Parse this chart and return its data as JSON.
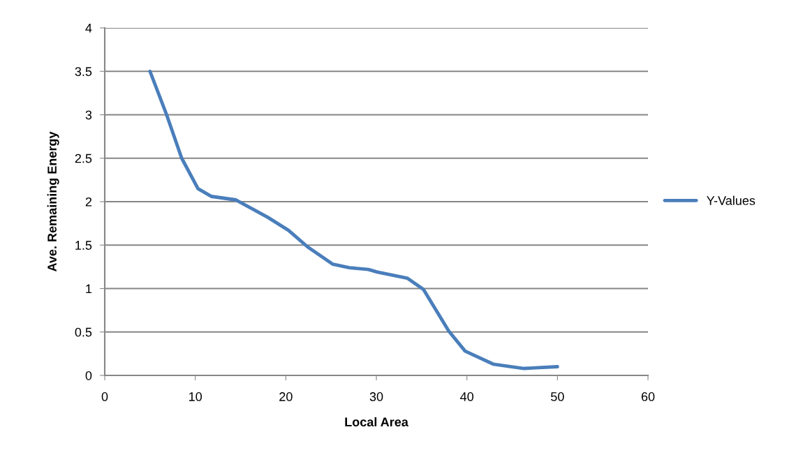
{
  "chart_data": {
    "type": "line",
    "xlabel": "Local Area",
    "ylabel": "Ave. Remaining Energy",
    "xlim": [
      0,
      60
    ],
    "xticks": [
      0,
      10,
      20,
      30,
      40,
      50,
      60
    ],
    "ylim": [
      0,
      4
    ],
    "yticks": [
      0,
      0.5,
      1,
      1.5,
      2,
      2.5,
      3,
      3.5,
      4
    ],
    "grid": "y",
    "legend": "right",
    "marker": "none",
    "line_style": "solid",
    "series": [
      {
        "name": "Y-Values",
        "color": "#4a7ebb",
        "x": [
          5,
          6.8,
          8.5,
          10.3,
          11.8,
          14.5,
          18,
          20.3,
          22.4,
          25.2,
          27,
          29.1,
          30.1,
          33.4,
          35.2,
          38,
          39.8,
          42.9,
          46.3,
          50
        ],
        "values": [
          3.5,
          3.01,
          2.5,
          2.15,
          2.06,
          2.02,
          1.82,
          1.67,
          1.48,
          1.28,
          1.24,
          1.22,
          1.19,
          1.12,
          0.99,
          0.51,
          0.28,
          0.13,
          0.08,
          0.1
        ]
      }
    ]
  }
}
